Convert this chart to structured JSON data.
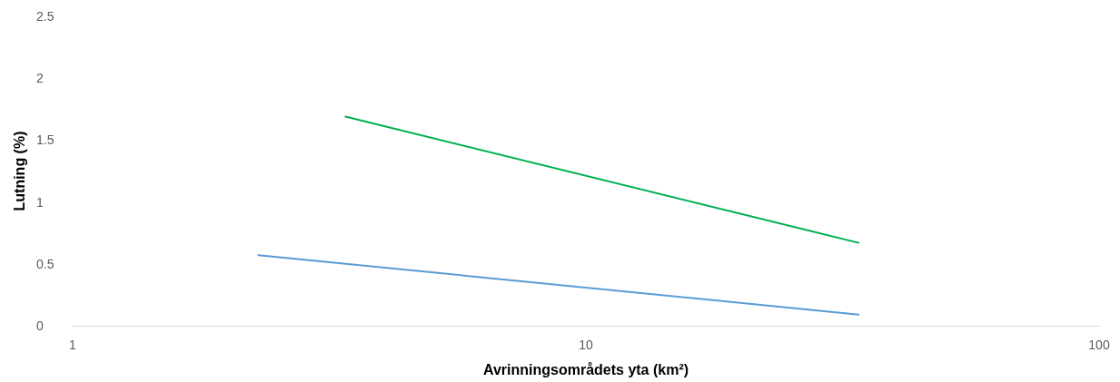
{
  "chart_data": {
    "type": "line",
    "xlabel": "Avrinningsområdets yta (km²)",
    "ylabel": "Lutning (%)",
    "log": "x",
    "xlim": [
      1,
      100
    ],
    "xticks": [
      1,
      10,
      100
    ],
    "ylim": [
      0,
      2.5
    ],
    "yticks": [
      0,
      0.5,
      1,
      1.5,
      2,
      2.5
    ],
    "grid": false,
    "marker": "none",
    "line_style": "solid",
    "series": [
      {
        "color": "#00b050",
        "x": [
          3.4,
          34
        ],
        "values": [
          1.69,
          0.67
        ]
      },
      {
        "color": "#5b9bd5",
        "x": [
          2.3,
          34
        ],
        "values": [
          0.57,
          0.09
        ]
      }
    ]
  }
}
